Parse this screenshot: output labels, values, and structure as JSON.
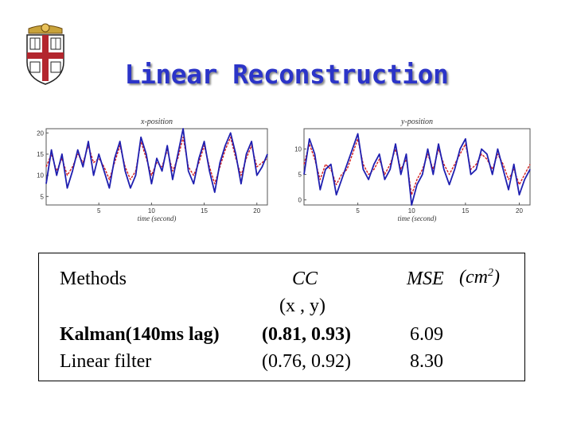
{
  "title": "Linear Reconstruction",
  "colors": {
    "title": "#2b34c8",
    "true_trace": "#d42020",
    "reconstruction_trace": "#1f1fb0"
  },
  "chart_data": [
    {
      "type": "line",
      "title": "x-position",
      "xlabel": "time (second)",
      "ylabel": "",
      "xlim": [
        0,
        21
      ],
      "ylim": [
        3,
        21
      ],
      "x_ticks": [
        5,
        10,
        15,
        20
      ],
      "y_ticks": [
        5,
        10,
        15,
        20
      ],
      "series": [
        {
          "color": "#d42020",
          "x": [
            0,
            0.5,
            1,
            1.5,
            2,
            2.5,
            3,
            3.5,
            4,
            4.5,
            5,
            5.5,
            6,
            6.5,
            7,
            7.5,
            8,
            8.5,
            9,
            9.5,
            10,
            10.5,
            11,
            11.5,
            12,
            12.5,
            13,
            13.5,
            14,
            14.5,
            15,
            15.5,
            16,
            16.5,
            17,
            17.5,
            18,
            18.5,
            19,
            19.5,
            20,
            20.5,
            21
          ],
          "y": [
            12,
            15,
            11,
            14,
            10,
            12,
            15,
            13,
            17,
            13,
            14,
            12,
            9,
            13,
            17,
            12,
            9,
            11,
            18,
            14,
            10,
            13,
            12,
            16,
            11,
            14,
            19,
            12,
            10,
            13,
            17,
            12,
            8,
            12,
            16,
            19,
            14,
            10,
            14,
            17,
            12,
            13,
            14
          ]
        },
        {
          "color": "#1f1fb0",
          "x": [
            0,
            0.5,
            1,
            1.5,
            2,
            2.5,
            3,
            3.5,
            4,
            4.5,
            5,
            5.5,
            6,
            6.5,
            7,
            7.5,
            8,
            8.5,
            9,
            9.5,
            10,
            10.5,
            11,
            11.5,
            12,
            12.5,
            13,
            13.5,
            14,
            14.5,
            15,
            15.5,
            16,
            16.5,
            17,
            17.5,
            18,
            18.5,
            19,
            19.5,
            20,
            20.5,
            21
          ],
          "y": [
            8,
            16,
            10,
            15,
            7,
            11,
            16,
            12,
            18,
            10,
            15,
            11,
            7,
            14,
            18,
            11,
            7,
            10,
            19,
            15,
            8,
            14,
            11,
            17,
            9,
            15,
            21,
            11,
            8,
            14,
            18,
            11,
            6,
            13,
            17,
            20,
            15,
            8,
            15,
            18,
            10,
            12,
            15
          ]
        }
      ]
    },
    {
      "type": "line",
      "title": "y-position",
      "xlabel": "time (second)",
      "ylabel": "",
      "xlim": [
        0,
        21
      ],
      "ylim": [
        -1,
        14
      ],
      "x_ticks": [
        5,
        10,
        15,
        20
      ],
      "y_ticks": [
        0,
        5,
        10
      ],
      "series": [
        {
          "color": "#d42020",
          "x": [
            0,
            0.5,
            1,
            1.5,
            2,
            2.5,
            3,
            3.5,
            4,
            4.5,
            5,
            5.5,
            6,
            6.5,
            7,
            7.5,
            8,
            8.5,
            9,
            9.5,
            10,
            10.5,
            11,
            11.5,
            12,
            12.5,
            13,
            13.5,
            14,
            14.5,
            15,
            15.5,
            16,
            16.5,
            17,
            17.5,
            18,
            18.5,
            19,
            19.5,
            20,
            20.5,
            21
          ],
          "y": [
            7,
            11,
            8,
            4,
            7,
            6,
            3,
            5,
            6,
            9,
            12,
            7,
            5,
            6,
            8,
            5,
            7,
            10,
            6,
            8,
            1,
            4,
            6,
            9,
            6,
            10,
            7,
            5,
            7,
            9,
            11,
            6,
            7,
            9,
            8,
            6,
            9,
            7,
            4,
            6,
            3,
            5,
            7
          ]
        },
        {
          "color": "#1f1fb0",
          "x": [
            0,
            0.5,
            1,
            1.5,
            2,
            2.5,
            3,
            3.5,
            4,
            4.5,
            5,
            5.5,
            6,
            6.5,
            7,
            7.5,
            8,
            8.5,
            9,
            9.5,
            10,
            10.5,
            11,
            11.5,
            12,
            12.5,
            13,
            13.5,
            14,
            14.5,
            15,
            15.5,
            16,
            16.5,
            17,
            17.5,
            18,
            18.5,
            19,
            19.5,
            20,
            20.5,
            21
          ],
          "y": [
            5,
            12,
            9,
            2,
            6,
            7,
            1,
            4,
            7,
            10,
            13,
            6,
            4,
            7,
            9,
            4,
            6,
            11,
            5,
            9,
            -1,
            3,
            5,
            10,
            5,
            11,
            6,
            3,
            6,
            10,
            12,
            5,
            6,
            10,
            9,
            5,
            10,
            6,
            2,
            7,
            1,
            4,
            6
          ]
        }
      ]
    }
  ],
  "table": {
    "headers": {
      "methods": "Methods",
      "cc": "CC",
      "cc_sub": "(x , y)",
      "mse": "MSE",
      "mse_unit": "(cm",
      "mse_unit_exp": "2",
      "mse_unit_close": ")"
    },
    "rows": [
      {
        "method": "Kalman(140ms lag)",
        "cc": "(0.81, 0.93)",
        "mse": "6.09"
      },
      {
        "method": "Linear filter",
        "cc": "(0.76, 0.92)",
        "mse": "8.30"
      }
    ]
  }
}
